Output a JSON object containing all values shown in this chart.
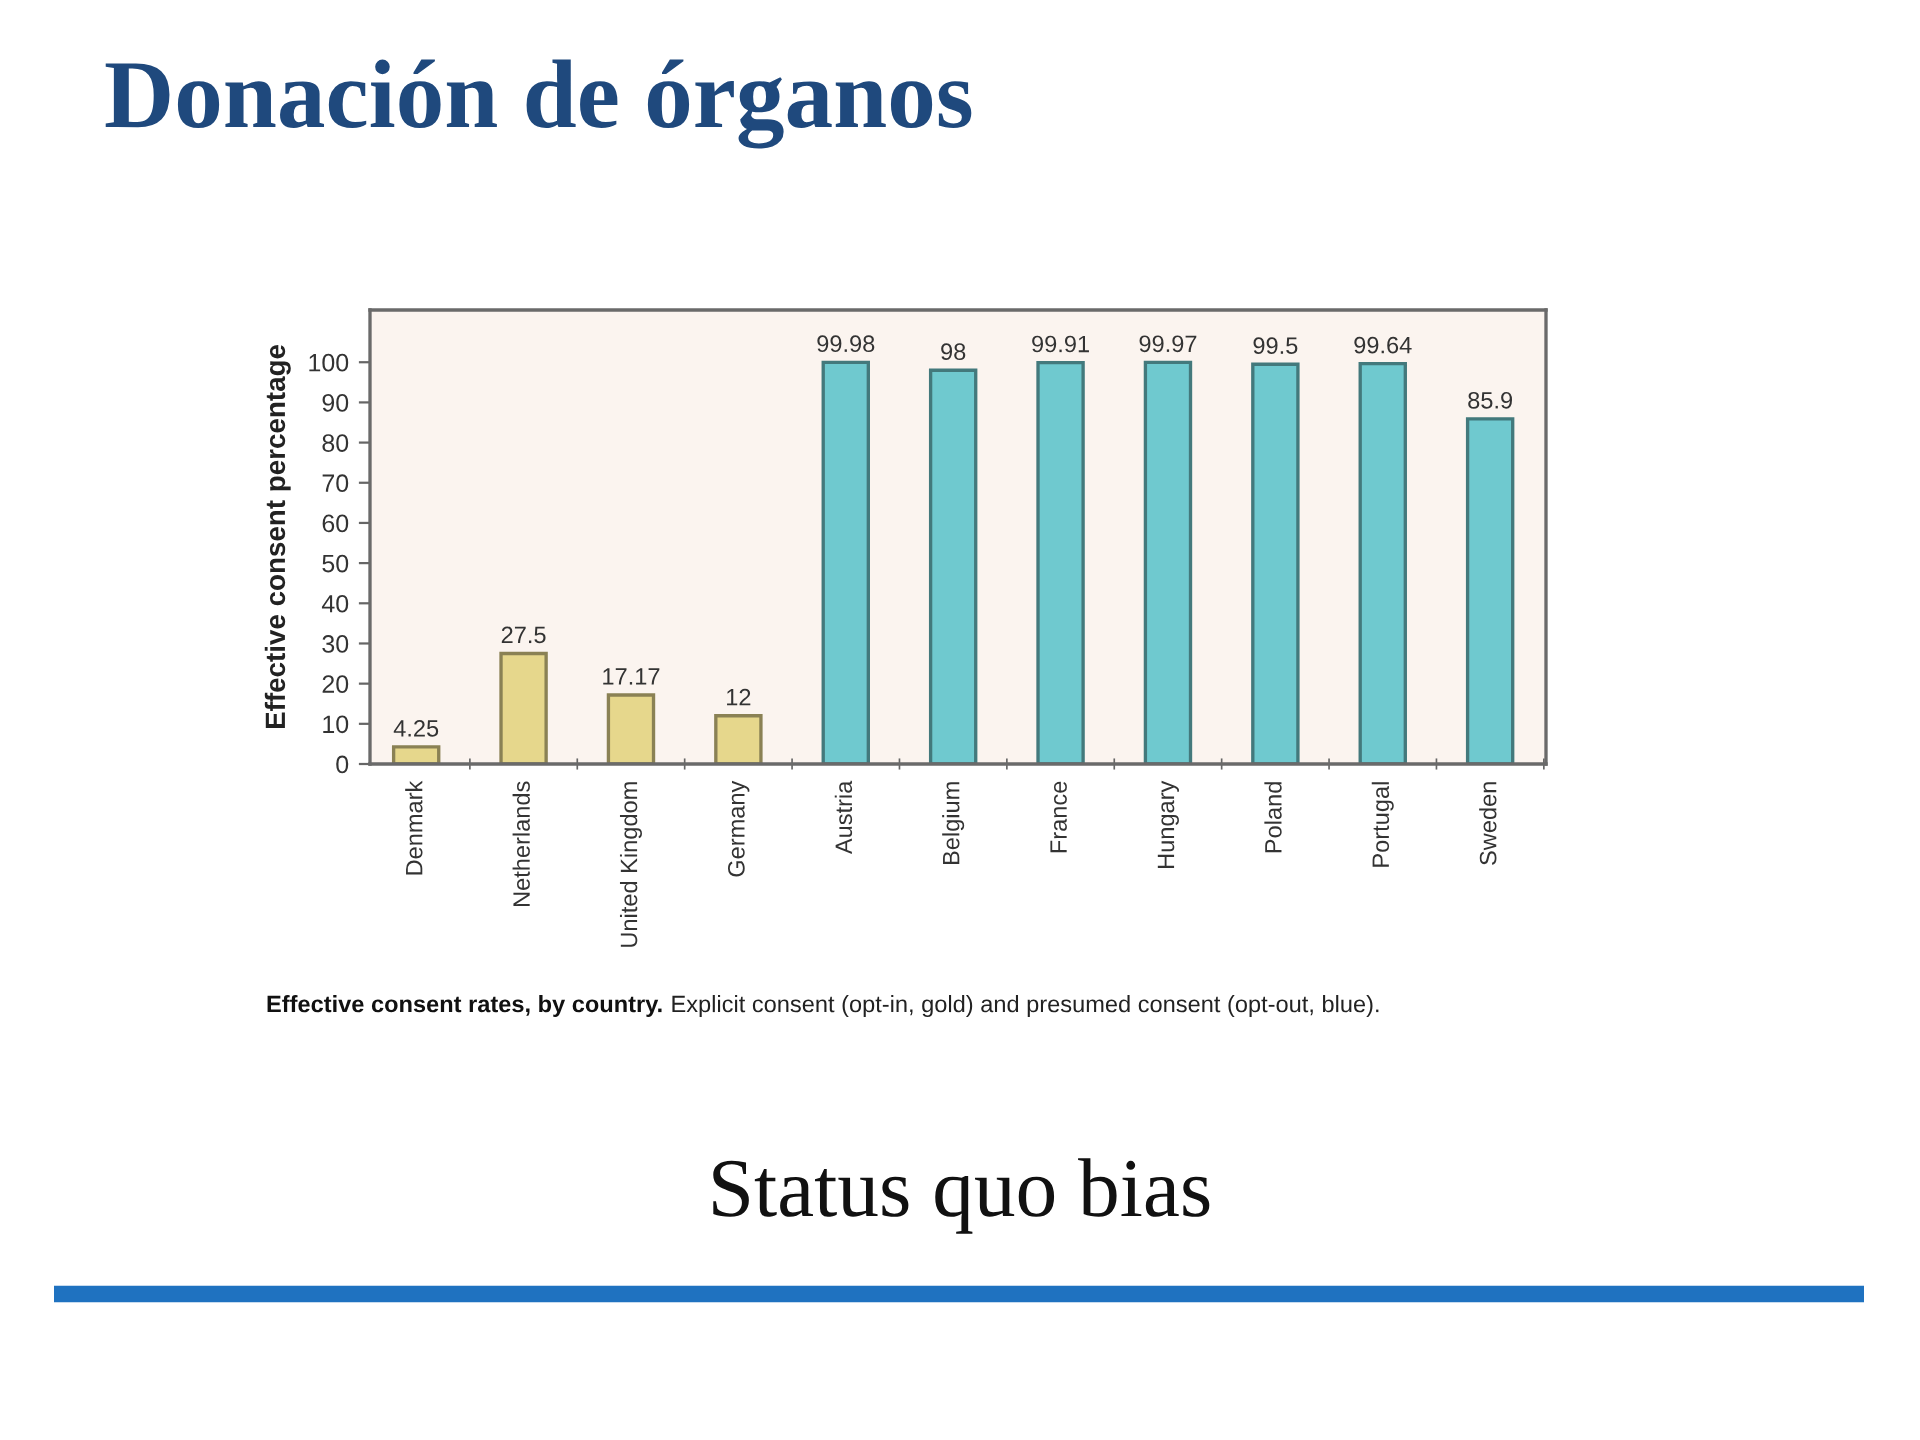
{
  "chart_data": {
    "type": "bar",
    "title": "Donación de órganos",
    "ylabel": "Effective consent percentage",
    "categories": [
      "Denmark",
      "Netherlands",
      "United Kingdom",
      "Germany",
      "Austria",
      "Belgium",
      "France",
      "Hungary",
      "Poland",
      "Portugal",
      "Sweden"
    ],
    "values": [
      4.25,
      27.5,
      17.17,
      12,
      99.98,
      98,
      99.91,
      99.97,
      99.5,
      99.64,
      85.9
    ],
    "colors": [
      "#e6d78c",
      "#e6d78c",
      "#e6d78c",
      "#e6d78c",
      "#6fc9cf",
      "#6fc9cf",
      "#6fc9cf",
      "#6fc9cf",
      "#6fc9cf",
      "#6fc9cf",
      "#6fc9cf"
    ],
    "data_labels": true,
    "ylim": [
      0,
      113
    ],
    "yticks": [
      0,
      10,
      20,
      30,
      40,
      50,
      60,
      70,
      80,
      90,
      100
    ],
    "annotations": [
      "Effective consent rates, by country.",
      "Explicit consent (opt-in, gold) and presumed consent (opt-out, blue).",
      "Status quo bias"
    ]
  }
}
